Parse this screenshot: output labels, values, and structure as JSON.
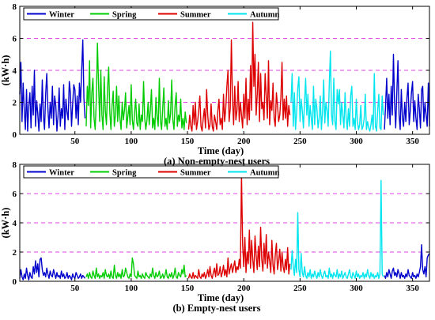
{
  "chart_data": [
    {
      "type": "line",
      "caption": "(a) Non-empty-nest users",
      "xlabel": "Time (day)",
      "ylabel": "(kW·h)",
      "xlim": [
        1,
        365
      ],
      "ylim": [
        0,
        8
      ],
      "xticks": [
        50,
        100,
        150,
        200,
        250,
        300,
        350
      ],
      "yticks": [
        0,
        2,
        4,
        6,
        8
      ],
      "reference_lines": [
        2,
        4,
        6
      ],
      "reference_line_color": "#e040e0",
      "legend_position": "top-left",
      "series": [
        {
          "name": "Winter",
          "color": "#0000cc",
          "x_start": 1,
          "values": [
            2.5,
            4.5,
            0.8,
            3.2,
            1.5,
            0.3,
            2.8,
            0.2,
            1.8,
            2.6,
            0.4,
            3.0,
            1.2,
            4.0,
            0.5,
            2.1,
            1.3,
            0.2,
            1.9,
            0.8,
            3.4,
            1.1,
            0.3,
            2.5,
            3.8,
            1.6,
            0.4,
            2.0,
            1.0,
            3.0,
            0.6,
            2.4,
            1.8,
            0.2,
            1.2,
            2.9,
            0.5,
            1.6,
            1.0,
            3.1,
            0.3,
            2.2,
            1.4,
            0.9,
            3.3,
            2.6,
            0.5,
            1.9,
            3.1,
            2.8,
            1.0,
            2.4,
            0.6,
            3.2,
            2.0,
            4.0,
            5.9,
            2.2,
            1.0
          ]
        },
        {
          "name": "Spring",
          "color": "#00cc00",
          "x_start": 60,
          "values": [
            0.5,
            3.0,
            1.8,
            4.6,
            0.4,
            2.6,
            3.5,
            1.0,
            0.3,
            2.2,
            5.7,
            3.1,
            0.8,
            4.0,
            1.2,
            0.3,
            3.6,
            1.5,
            0.6,
            2.9,
            4.2,
            1.4,
            0.3,
            1.8,
            2.7,
            0.5,
            1.2,
            3.0,
            0.8,
            2.4,
            1.0,
            0.3,
            2.0,
            0.9,
            1.5,
            2.6,
            0.4,
            1.1,
            1.8,
            0.6,
            3.1,
            0.9,
            0.3,
            1.4,
            2.2,
            0.7,
            0.5,
            1.9,
            0.3,
            1.2,
            0.8,
            3.3,
            1.0,
            0.3,
            0.9,
            2.0,
            0.6,
            1.5,
            2.8,
            0.4,
            1.0,
            0.3,
            2.3,
            1.1,
            0.5,
            3.5,
            0.8,
            0.3,
            1.6,
            2.9,
            0.5,
            1.0,
            0.3,
            2.1,
            0.7,
            1.3,
            3.4,
            0.9,
            0.3,
            1.8,
            2.6,
            0.5,
            1.2,
            0.8,
            2.2,
            0.4,
            1.0,
            0.3,
            1.4,
            0.7
          ]
        },
        {
          "name": "Summer",
          "color": "#dd0000",
          "x_start": 151,
          "values": [
            0.3,
            1.2,
            0.5,
            0.2,
            1.8,
            0.6,
            2.0,
            0.3,
            0.8,
            1.5,
            2.4,
            0.5,
            0.2,
            1.0,
            1.6,
            0.4,
            2.8,
            1.2,
            0.3,
            0.6,
            1.9,
            0.5,
            0.2,
            1.2,
            0.8,
            0.3,
            1.5,
            2.2,
            0.6,
            1.0,
            0.3,
            2.5,
            0.8,
            1.6,
            3.0,
            4.0,
            0.8,
            1.6,
            5.9,
            2.2,
            0.6,
            3.0,
            0.9,
            1.5,
            3.3,
            0.8,
            2.0,
            1.2,
            0.4,
            2.5,
            1.0,
            3.5,
            0.6,
            2.2,
            0.9,
            4.3,
            1.5,
            7.0,
            3.0,
            5.0,
            1.2,
            2.5,
            4.5,
            0.8,
            3.8,
            1.6,
            2.0,
            0.9,
            3.8,
            2.4,
            1.0,
            4.6,
            0.6,
            2.1,
            1.5,
            3.2,
            1.0,
            0.5,
            2.6,
            1.8,
            0.8,
            1.2,
            2.3,
            4.5,
            0.9,
            2.2,
            1.0,
            2.4,
            0.5,
            1.8,
            1.2
          ]
        },
        {
          "name": "Autumn",
          "color": "#00e5ee",
          "x_start": 242,
          "values": [
            2.0,
            3.8,
            0.5,
            2.6,
            0.3,
            1.4,
            2.9,
            3.6,
            0.8,
            2.2,
            1.5,
            0.4,
            2.0,
            3.5,
            1.2,
            2.5,
            0.5,
            1.8,
            1.0,
            0.3,
            3.0,
            0.6,
            2.2,
            1.6,
            0.4,
            1.0,
            2.4,
            0.3,
            1.4,
            3.4,
            0.7,
            2.0,
            1.5,
            0.5,
            3.2,
            5.2,
            1.2,
            0.6,
            3.5,
            0.8,
            0.3,
            2.8,
            1.9,
            2.8,
            0.6,
            2.0,
            1.2,
            0.4,
            2.6,
            1.0,
            0.3,
            1.6,
            0.5,
            2.4,
            3.0,
            0.5,
            1.0,
            0.3,
            2.2,
            0.8,
            0.3,
            0.6,
            1.8,
            0.3,
            0.5,
            1.0,
            2.5,
            0.3,
            0.8,
            0.4,
            0.2,
            0.6,
            1.2,
            0.3,
            3.8,
            0.5,
            0.2,
            1.5,
            2.5,
            0.4,
            0.3,
            2.4,
            1.2
          ]
        },
        {
          "name": "",
          "color": "#0000cc",
          "x_start": 325,
          "values": [
            0.3,
            1.8,
            3.5,
            1.0,
            2.5,
            0.6,
            3.0,
            1.2,
            5.0,
            2.0,
            0.4,
            2.6,
            4.6,
            1.2,
            0.3,
            2.8,
            1.0,
            0.5,
            2.0,
            0.8,
            2.3,
            3.2,
            0.6,
            1.5,
            2.6,
            3.3,
            0.8,
            2.1,
            1.0,
            0.3,
            2.5,
            1.6,
            0.4,
            2.8,
            3.0,
            0.8,
            2.0,
            1.2,
            0.5,
            3.2,
            0.5
          ]
        }
      ]
    },
    {
      "type": "line",
      "caption": "(b) Empty-nest users",
      "xlabel": "Time (day)",
      "ylabel": "(kW·h)",
      "xlim": [
        1,
        365
      ],
      "ylim": [
        0,
        8
      ],
      "xticks": [
        50,
        100,
        150,
        200,
        250,
        300,
        350
      ],
      "yticks": [
        0,
        2,
        4,
        6,
        8
      ],
      "reference_lines": [
        2,
        4,
        6
      ],
      "reference_line_color": "#e040e0",
      "legend_position": "top",
      "series": [
        {
          "name": "Winter",
          "color": "#0000cc",
          "x_start": 1,
          "values": [
            0.2,
            0.8,
            0.3,
            0.1,
            0.5,
            0.2,
            0.9,
            0.4,
            0.1,
            0.6,
            0.3,
            0.2,
            1.0,
            0.5,
            1.4,
            0.6,
            1.2,
            0.3,
            1.5,
            1.6,
            0.8,
            0.4,
            0.6,
            0.3,
            0.9,
            0.5,
            0.2,
            0.7,
            0.4,
            0.3,
            0.8,
            0.5,
            0.2,
            0.6,
            0.3,
            0.4,
            0.2,
            0.7,
            0.3,
            0.5,
            0.2,
            0.3,
            0.6,
            0.2,
            0.4,
            0.3,
            0.1,
            0.5,
            0.3,
            0.2,
            0.6,
            0.4,
            0.2,
            0.3,
            0.5,
            0.2,
            0.4,
            0.3,
            0.2
          ]
        },
        {
          "name": "Spring",
          "color": "#00cc00",
          "x_start": 60,
          "values": [
            0.3,
            0.5,
            0.2,
            0.6,
            0.3,
            0.2,
            0.7,
            0.4,
            0.2,
            0.9,
            0.3,
            0.5,
            0.2,
            0.4,
            0.3,
            0.6,
            0.2,
            0.8,
            0.4,
            0.3,
            0.5,
            0.2,
            0.7,
            0.3,
            0.2,
            1.1,
            0.4,
            0.2,
            0.6,
            0.3,
            0.5,
            0.2,
            0.8,
            0.3,
            0.4,
            0.9,
            0.6,
            0.3,
            0.2,
            0.5,
            0.3,
            1.6,
            1.2,
            0.4,
            0.3,
            0.2,
            0.7,
            0.3,
            0.4,
            0.2,
            0.5,
            0.3,
            0.2,
            0.6,
            0.4,
            0.3,
            0.2,
            0.5,
            0.3,
            0.9,
            0.4,
            0.2,
            0.6,
            0.3,
            0.4,
            0.7,
            0.2,
            0.3,
            0.5,
            0.2,
            0.4,
            0.8,
            0.3,
            0.2,
            0.5,
            0.3,
            0.6,
            0.2,
            0.4,
            0.9,
            0.3,
            0.2,
            0.6,
            0.4,
            0.3,
            0.8,
            0.5,
            1.1,
            0.3,
            0.4
          ]
        },
        {
          "name": "Summer",
          "color": "#dd0000",
          "x_start": 151,
          "values": [
            0.2,
            0.5,
            0.3,
            0.2,
            0.6,
            0.2,
            0.4,
            0.3,
            0.2,
            0.8,
            0.3,
            0.2,
            0.5,
            0.3,
            0.6,
            0.2,
            0.4,
            0.8,
            0.3,
            1.0,
            0.4,
            0.2,
            0.6,
            0.9,
            0.3,
            1.2,
            0.4,
            0.5,
            1.0,
            0.3,
            0.6,
            1.1,
            0.4,
            0.8,
            0.3,
            1.6,
            0.5,
            0.9,
            1.2,
            0.6,
            1.0,
            1.4,
            0.6,
            1.0,
            0.8,
            1.5,
            0.9,
            7.3,
            2.5,
            1.0,
            3.0,
            0.6,
            2.0,
            1.2,
            3.5,
            0.9,
            2.8,
            1.5,
            0.6,
            3.1,
            1.8,
            0.8,
            2.4,
            1.0,
            3.7,
            1.5,
            0.7,
            2.6,
            1.2,
            3.2,
            0.9,
            2.0,
            1.4,
            0.6,
            2.8,
            1.1,
            0.5,
            1.8,
            2.6,
            0.8,
            1.4,
            2.2,
            0.7,
            2.0,
            1.0,
            0.6,
            1.5,
            0.8,
            2.3,
            0.5,
            1.2
          ]
        },
        {
          "name": "Autumn",
          "color": "#00e5ee",
          "x_start": 242,
          "values": [
            0.8,
            2.1,
            1.0,
            0.4,
            1.5,
            0.6,
            4.7,
            0.8,
            0.3,
            1.9,
            0.6,
            0.3,
            1.0,
            0.4,
            0.2,
            0.6,
            0.3,
            0.8,
            0.2,
            0.5,
            0.3,
            0.7,
            0.4,
            0.2,
            0.6,
            0.3,
            0.8,
            0.4,
            0.2,
            0.5,
            0.7,
            0.3,
            0.4,
            0.2,
            0.9,
            0.3,
            0.5,
            0.2,
            0.6,
            0.4,
            0.3,
            0.8,
            0.2,
            0.5,
            0.3,
            0.7,
            0.2,
            0.4,
            0.6,
            0.3,
            0.2,
            0.5,
            0.8,
            0.3,
            0.2,
            0.6,
            0.4,
            0.2,
            0.7,
            0.3,
            0.5,
            0.2,
            0.4,
            0.3,
            0.6,
            0.2,
            0.5,
            0.3,
            0.8,
            0.4,
            0.2,
            0.6,
            0.3,
            0.5,
            0.2,
            0.4,
            0.3,
            0.6,
            0.2,
            0.5,
            6.9,
            0.5,
            0.3
          ]
        },
        {
          "name": "",
          "color": "#0000cc",
          "x_start": 325,
          "values": [
            0.4,
            0.2,
            0.6,
            0.3,
            0.8,
            0.5,
            0.2,
            0.7,
            0.9,
            0.4,
            0.6,
            0.3,
            0.8,
            0.5,
            0.2,
            0.6,
            0.3,
            0.4,
            0.2,
            0.5,
            0.3,
            0.8,
            0.4,
            0.3,
            0.2,
            0.6,
            0.3,
            0.4,
            0.2,
            0.5,
            0.3,
            0.6,
            1.0,
            2.5,
            0.8,
            0.5,
            1.0,
            0.3,
            1.6,
            1.8,
            1.9
          ]
        }
      ]
    }
  ]
}
